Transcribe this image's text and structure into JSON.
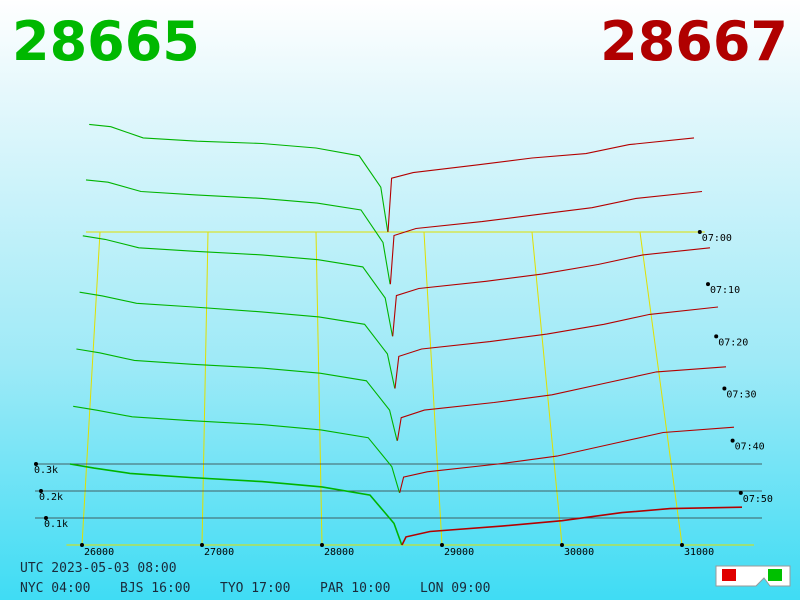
{
  "header": {
    "bid": "28665",
    "ask": "28667"
  },
  "chart_data": {
    "type": "depth3d",
    "xlim": [
      25870,
      31600
    ],
    "xticks": [
      26000,
      27000,
      28000,
      29000,
      30000,
      31000
    ],
    "ylim": [
      0,
      500
    ],
    "yticks": [
      {
        "value": 100,
        "label": "0.1k"
      },
      {
        "value": 200,
        "label": "0.2k"
      },
      {
        "value": 300,
        "label": "0.3k"
      }
    ],
    "time_ticks": [
      "07:00",
      "07:10",
      "07:20",
      "07:30",
      "07:40",
      "07:50"
    ],
    "bid_prices": [
      25900,
      26100,
      26400,
      26900,
      27500,
      28000,
      28400,
      28600,
      28665
    ],
    "ask_prices": [
      28667,
      28700,
      28900,
      29500,
      30000,
      30500,
      30900,
      31500
    ],
    "slices": [
      {
        "bid": [
          480,
          470,
          420,
          405,
          395,
          375,
          340,
          200,
          0
        ],
        "ask": [
          0,
          240,
          265,
          300,
          330,
          350,
          390,
          420
        ]
      },
      {
        "bid": [
          450,
          440,
          400,
          385,
          370,
          350,
          320,
          180,
          0
        ],
        "ask": [
          0,
          210,
          240,
          270,
          300,
          330,
          370,
          400
        ]
      },
      {
        "bid": [
          420,
          405,
          370,
          355,
          340,
          320,
          290,
          160,
          0
        ],
        "ask": [
          0,
          170,
          200,
          230,
          260,
          300,
          340,
          370
        ]
      },
      {
        "bid": [
          390,
          375,
          345,
          330,
          310,
          290,
          260,
          140,
          0
        ],
        "ask": [
          0,
          130,
          160,
          190,
          220,
          260,
          300,
          330
        ]
      },
      {
        "bid": [
          360,
          345,
          315,
          300,
          285,
          265,
          235,
          120,
          0
        ],
        "ask": [
          0,
          90,
          120,
          150,
          180,
          230,
          270,
          290
        ]
      },
      {
        "bid": [
          330,
          315,
          290,
          275,
          260,
          240,
          210,
          100,
          0
        ],
        "ask": [
          0,
          60,
          80,
          110,
          140,
          190,
          230,
          250
        ]
      },
      {
        "bid": [
          300,
          285,
          265,
          250,
          235,
          215,
          185,
          80,
          0
        ],
        "ask": [
          0,
          30,
          50,
          70,
          90,
          120,
          135,
          140
        ]
      }
    ],
    "bid_color": "#00b400",
    "ask_color": "#b40000",
    "grid_color": "#e0e000"
  },
  "footer": {
    "utc": "UTC 2023-05-03 08:00",
    "cities": [
      "NYC 04:00",
      "BJS 16:00",
      "TYO 17:00",
      "PAR 10:00",
      "LON 09:00"
    ]
  }
}
